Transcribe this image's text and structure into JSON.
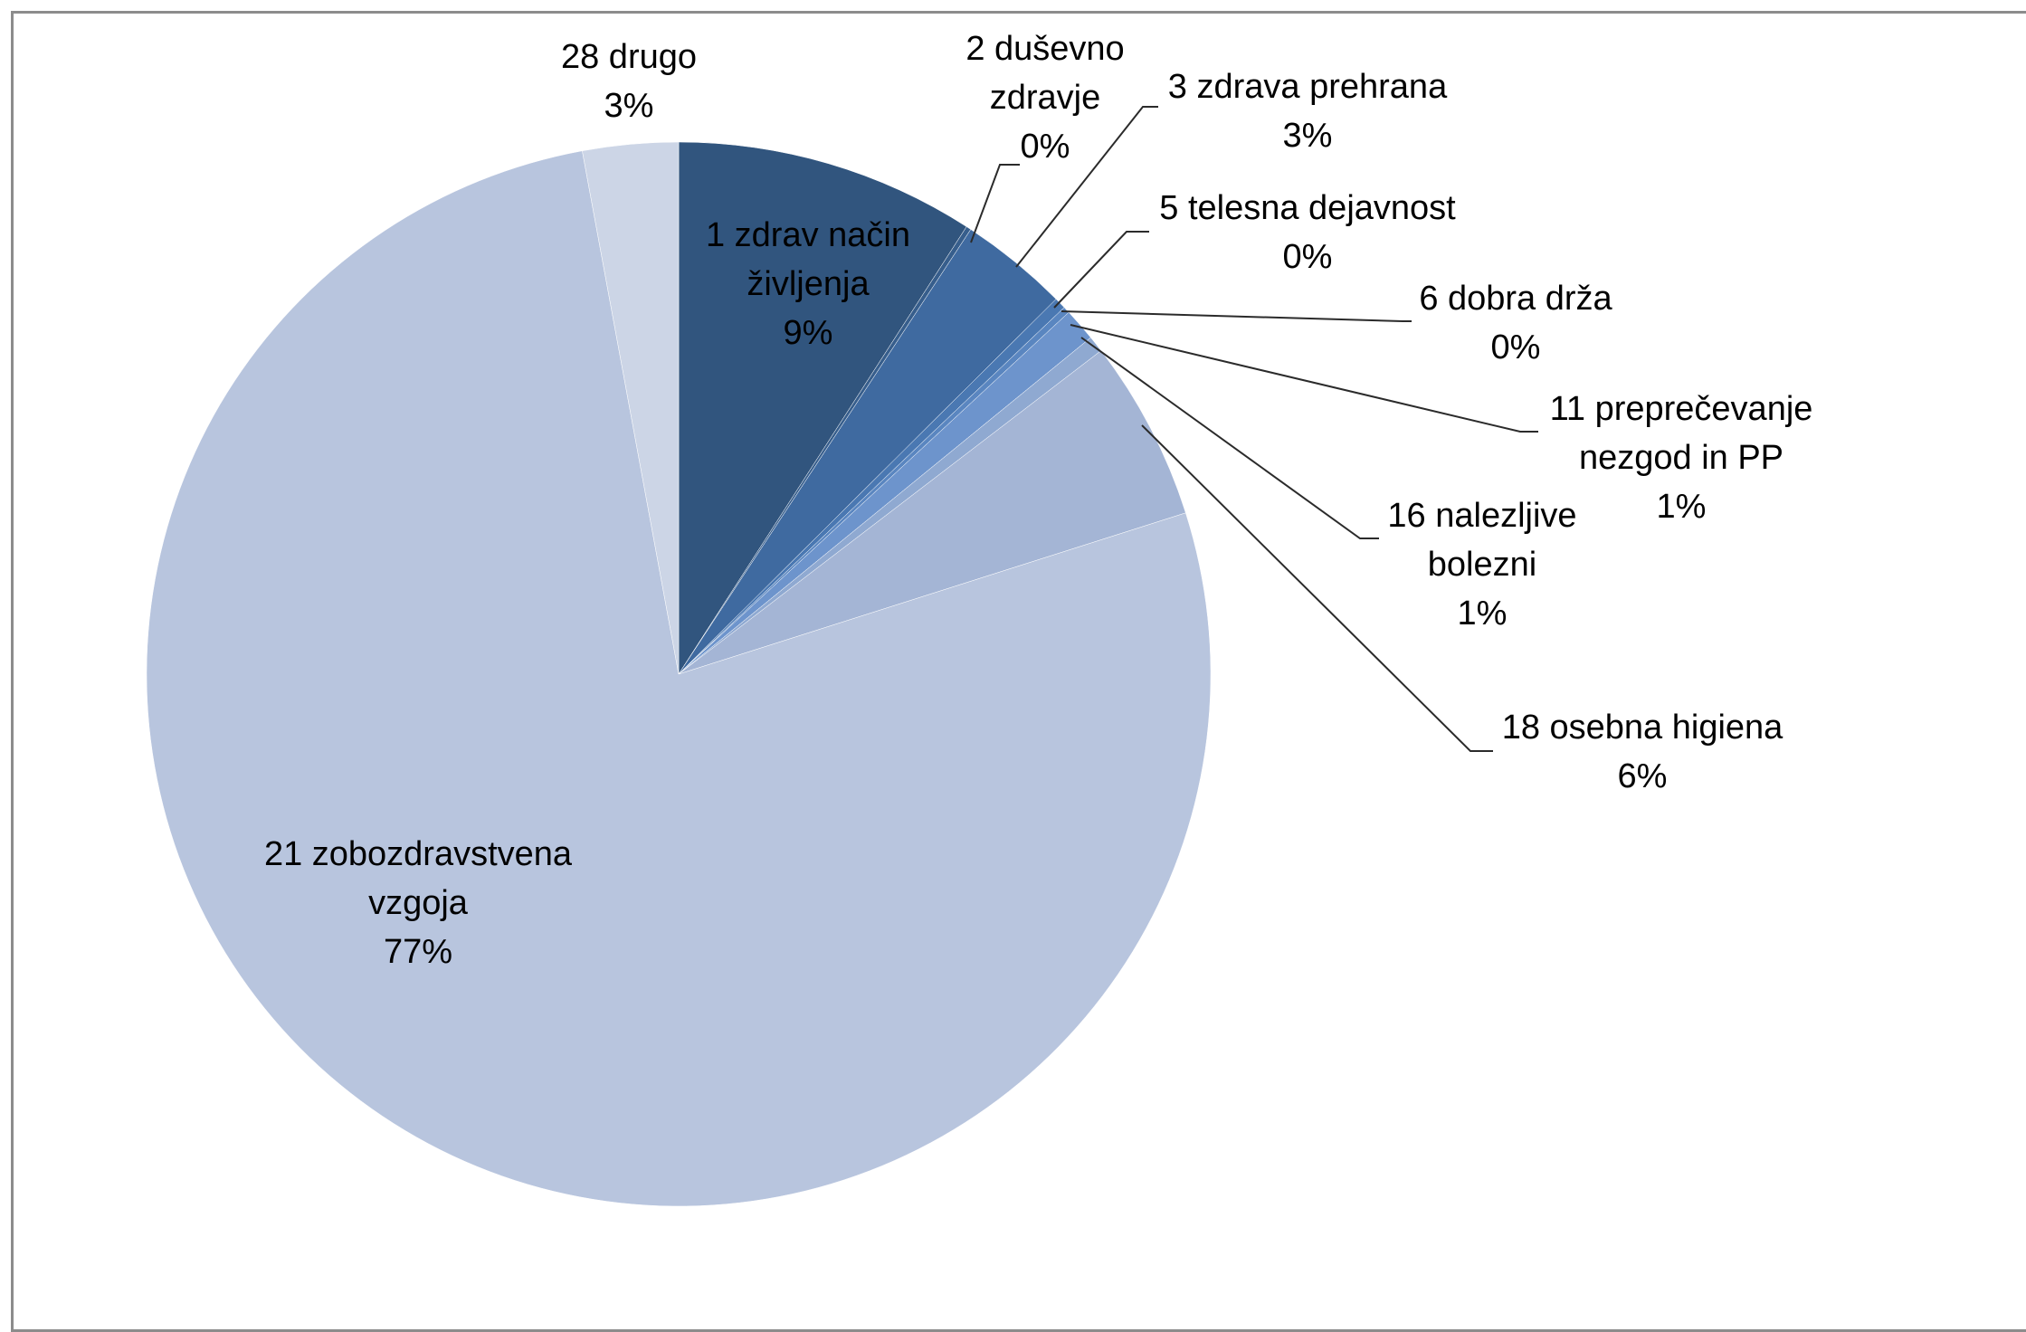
{
  "chart_data": {
    "type": "pie",
    "start_angle_deg": 0,
    "direction": "clockwise",
    "slices": [
      {
        "name": "1 zdrav način življenja",
        "label_lines": [
          "1 zdrav način",
          "življenja"
        ],
        "percent_label": "9%",
        "value": 9.1,
        "color": "#31557E"
      },
      {
        "name": "2 duševno zdravje",
        "label_lines": [
          "2 duševno",
          "zdravje"
        ],
        "percent_label": "0%",
        "value": 0.15,
        "color": "#375E8C"
      },
      {
        "name": "3 zdrava prehrana",
        "label_lines": [
          "3 zdrava prehrana"
        ],
        "percent_label": "3%",
        "value": 3.3,
        "color": "#3F6AA0"
      },
      {
        "name": "5 telesna dejavnost",
        "label_lines": [
          "5 telesna dejavnost"
        ],
        "percent_label": "0%",
        "value": 0.35,
        "color": "#4A78B2"
      },
      {
        "name": "6 dobra drža",
        "label_lines": [
          "6 dobra drža"
        ],
        "percent_label": "0%",
        "value": 0.2,
        "color": "#5A86C0"
      },
      {
        "name": "11 preprečevanje nezgod in PP",
        "label_lines": [
          "11 preprečevanje",
          "nezgod in PP"
        ],
        "percent_label": "1%",
        "value": 1.0,
        "color": "#6D94CC"
      },
      {
        "name": "16 nalezljive bolezni",
        "label_lines": [
          "16 nalezljive",
          "bolezni"
        ],
        "percent_label": "1%",
        "value": 0.5,
        "color": "#8FA9D1"
      },
      {
        "name": "18 osebna higiena",
        "label_lines": [
          "18 osebna higiena"
        ],
        "percent_label": "6%",
        "value": 5.5,
        "color": "#A4B5D5"
      },
      {
        "name": "21 zobozdravstvena vzgoja",
        "label_lines": [
          "21 zobozdravstvena",
          "vzgoja"
        ],
        "percent_label": "77%",
        "value": 77.0,
        "color": "#B8C5DE"
      },
      {
        "name": "28 drugo",
        "label_lines": [
          "28 drugo"
        ],
        "percent_label": "3%",
        "value": 2.9,
        "color": "#CCD5E6"
      }
    ]
  }
}
